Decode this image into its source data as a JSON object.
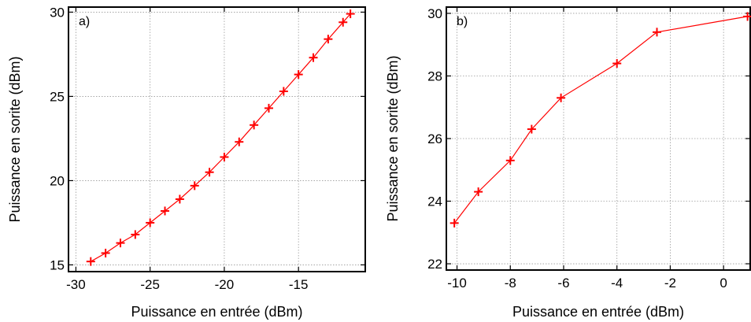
{
  "colors": {
    "series": "#ff0000",
    "axis": "#000000",
    "grid": "#9a9a9a"
  },
  "chart_data": [
    {
      "type": "line",
      "panel_label": "a)",
      "xlabel": "Puissance en entrée (dBm)",
      "ylabel": "Puissance en sorite (dBm)",
      "xlim": [
        -30.5,
        -10.5
      ],
      "ylim": [
        14.6,
        30.3
      ],
      "xticks": [
        -30,
        -25,
        -20,
        -15
      ],
      "yticks": [
        15,
        20,
        25,
        30
      ],
      "grid": true,
      "marker": "plus",
      "series": [
        {
          "x": [
            -29,
            -28,
            -27,
            -26,
            -25,
            -24,
            -23,
            -22,
            -21,
            -20,
            -19,
            -18,
            -17,
            -16,
            -15,
            -14,
            -13,
            -12,
            -11.5
          ],
          "y": [
            15.2,
            15.7,
            16.3,
            16.8,
            17.5,
            18.2,
            18.9,
            19.7,
            20.5,
            21.4,
            22.3,
            23.3,
            24.3,
            25.3,
            26.3,
            27.3,
            28.4,
            29.4,
            29.9
          ]
        }
      ]
    },
    {
      "type": "line",
      "panel_label": "b)",
      "xlabel": "Puissance en entrée (dBm)",
      "ylabel": "Puissance en sorite (dBm)",
      "xlim": [
        -10.4,
        1.0
      ],
      "ylim": [
        21.8,
        30.2
      ],
      "xticks": [
        -10,
        -8,
        -6,
        -4,
        -2,
        0
      ],
      "yticks": [
        22,
        24,
        26,
        28,
        30
      ],
      "grid": true,
      "marker": "plus",
      "series": [
        {
          "x": [
            -10.1,
            -9.2,
            -8.0,
            -7.2,
            -6.1,
            -4.0,
            -2.5,
            0.9
          ],
          "y": [
            23.3,
            24.3,
            25.3,
            26.3,
            27.3,
            28.4,
            29.4,
            29.9
          ]
        }
      ]
    }
  ]
}
